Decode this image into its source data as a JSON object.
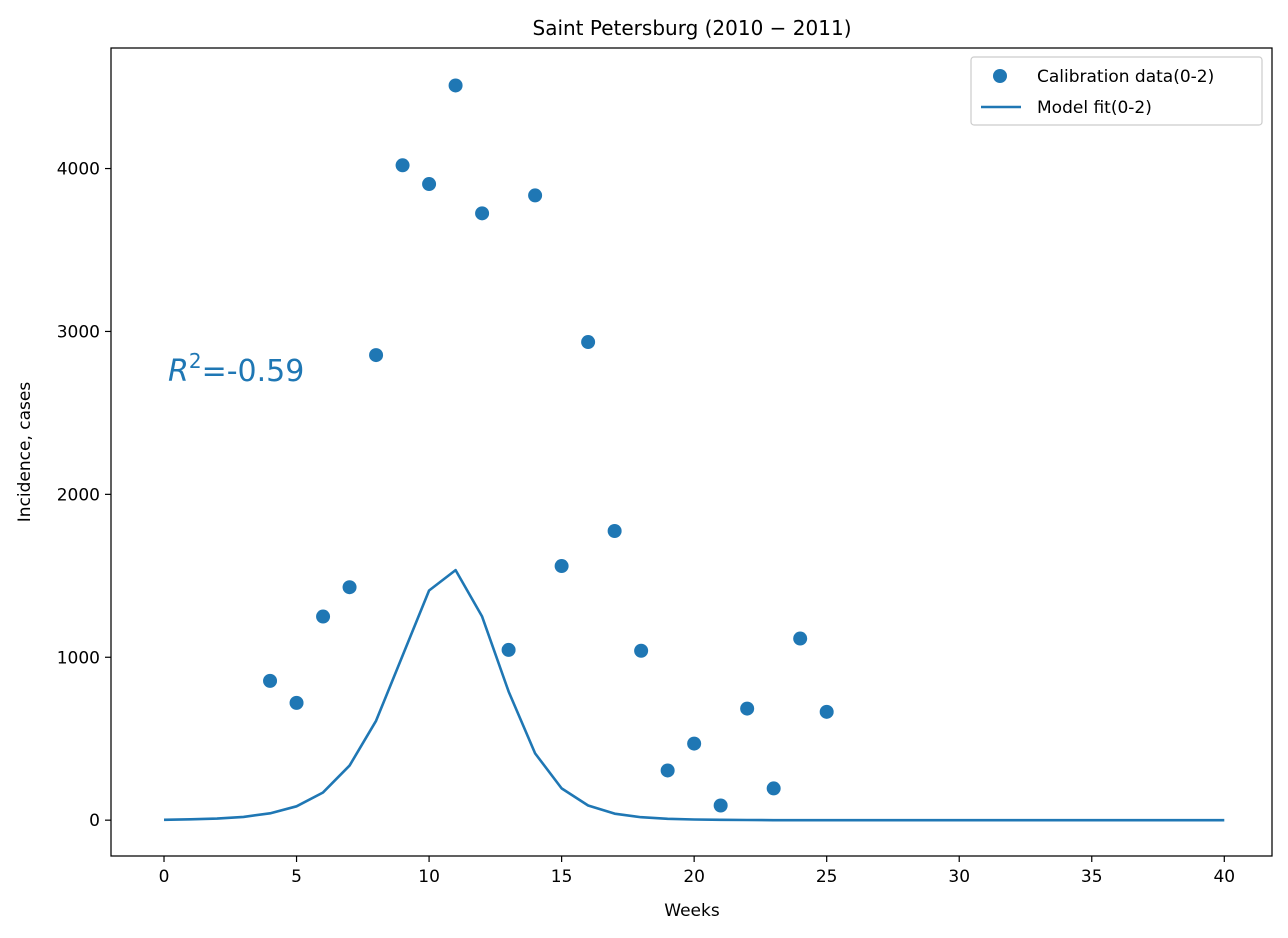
{
  "chart_data": {
    "type": "scatter",
    "title": "Saint Petersburg (2010 − 2011)",
    "xlabel": "Weeks",
    "ylabel": "Incidence, cases",
    "xlim": [
      -2,
      41.8
    ],
    "ylim": [
      -220,
      4740
    ],
    "xticks": [
      0,
      5,
      10,
      15,
      20,
      25,
      30,
      35,
      40
    ],
    "yticks": [
      0,
      1000,
      2000,
      3000,
      4000
    ],
    "legend_position": "top-right",
    "annotation": {
      "base": "R",
      "superscript": "2",
      "text": "=-0.59",
      "color": "#1f77b4"
    },
    "series": [
      {
        "name": "Calibration data(0-2)",
        "kind": "scatter",
        "color": "#1f77b4",
        "x": [
          4,
          5,
          6,
          7,
          8,
          9,
          10,
          11,
          12,
          13,
          14,
          15,
          16,
          17,
          18,
          19,
          20,
          21,
          22,
          23,
          24,
          25
        ],
        "y": [
          855,
          720,
          1250,
          1430,
          2855,
          4020,
          3905,
          4510,
          3725,
          1045,
          3835,
          1560,
          2935,
          1775,
          1040,
          305,
          470,
          90,
          685,
          195,
          1115,
          665
        ]
      },
      {
        "name": "Model fit(0-2)",
        "kind": "line",
        "color": "#1f77b4",
        "x": [
          0,
          1,
          2,
          3,
          4,
          5,
          6,
          7,
          8,
          9,
          10,
          11,
          12,
          13,
          14,
          15,
          16,
          17,
          18,
          19,
          20,
          21,
          22,
          23,
          24,
          25,
          26,
          27,
          28,
          29,
          30,
          31,
          32,
          33,
          34,
          35,
          36,
          37,
          38,
          39,
          40
        ],
        "y": [
          2,
          5,
          10,
          20,
          42,
          85,
          170,
          335,
          610,
          1010,
          1410,
          1535,
          1250,
          790,
          410,
          195,
          90,
          40,
          18,
          8,
          4,
          2,
          1,
          0,
          0,
          0,
          0,
          0,
          0,
          0,
          0,
          0,
          0,
          0,
          0,
          0,
          0,
          0,
          0,
          0,
          0
        ]
      }
    ]
  }
}
